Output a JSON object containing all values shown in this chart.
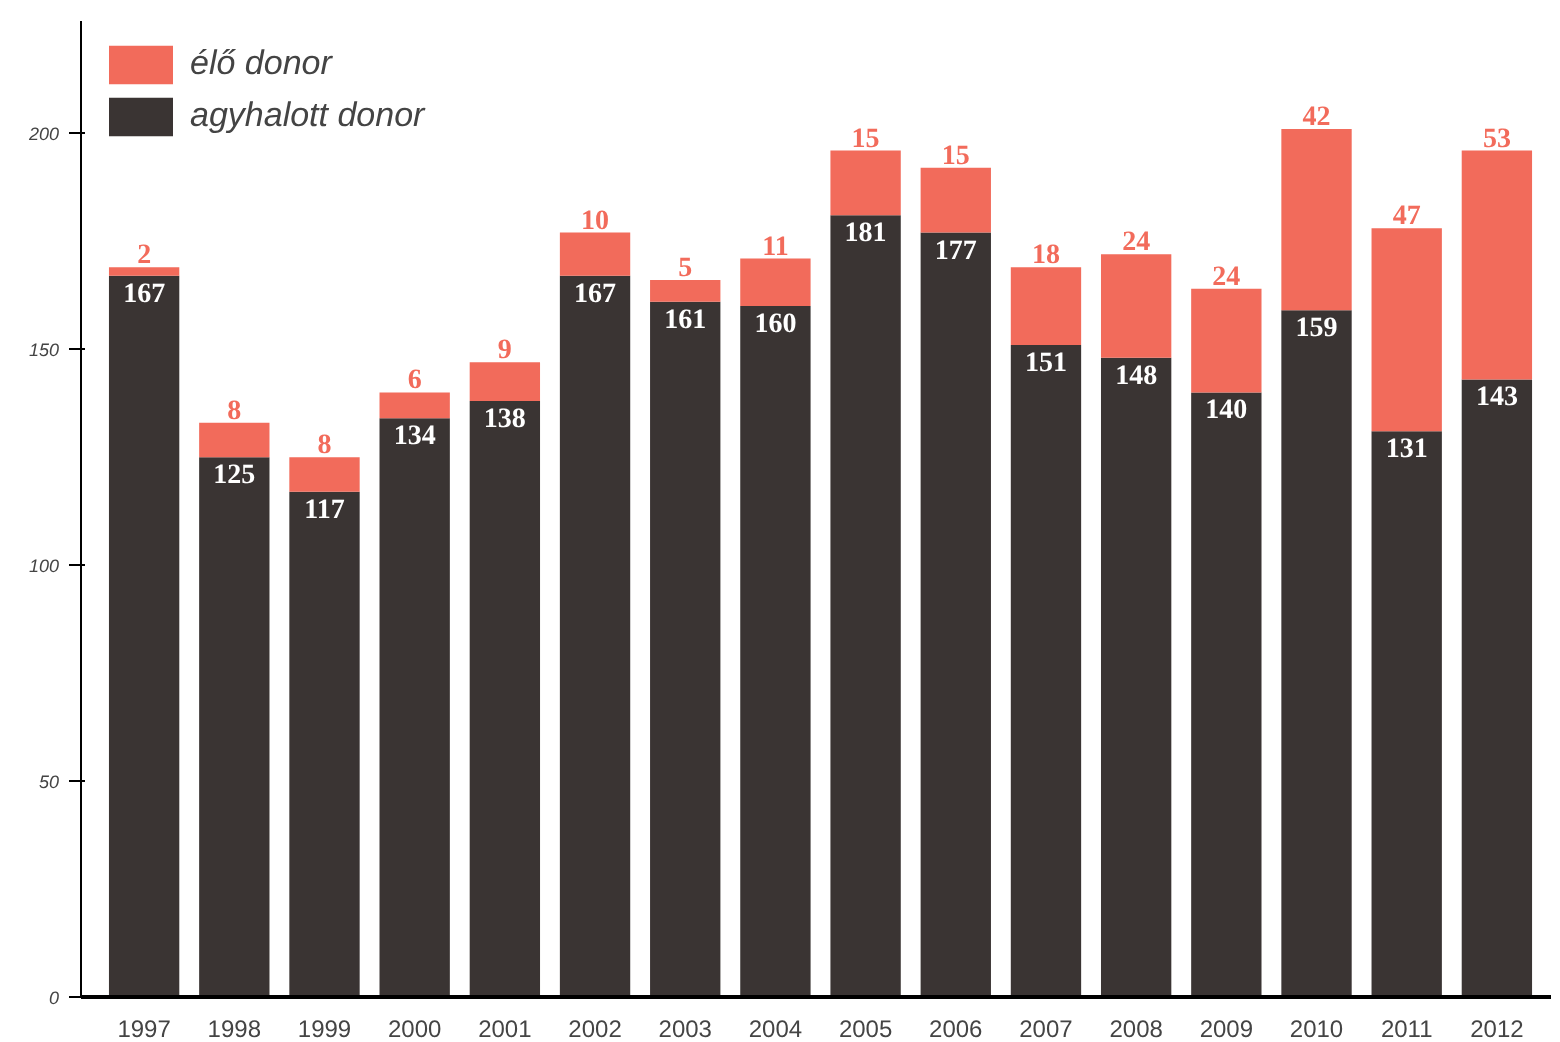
{
  "chart_data": {
    "type": "bar",
    "stacked": true,
    "categories": [
      "1997",
      "1998",
      "1999",
      "2000",
      "2001",
      "2002",
      "2003",
      "2004",
      "2005",
      "2006",
      "2007",
      "2008",
      "2009",
      "2010",
      "2011",
      "2012"
    ],
    "series": [
      {
        "name": "agyhalott donor",
        "color": "#3a3433",
        "values": [
          167,
          125,
          117,
          134,
          138,
          167,
          161,
          160,
          181,
          177,
          151,
          148,
          140,
          159,
          131,
          143
        ]
      },
      {
        "name": "élő donor",
        "color": "#f26b5b",
        "values": [
          2,
          8,
          8,
          6,
          9,
          10,
          5,
          11,
          15,
          15,
          18,
          24,
          24,
          42,
          47,
          53
        ]
      }
    ],
    "ylim": [
      0,
      226
    ],
    "yticks": [
      0,
      50,
      100,
      150,
      200
    ],
    "grid": false,
    "legend": "top left",
    "data_labels": true
  }
}
